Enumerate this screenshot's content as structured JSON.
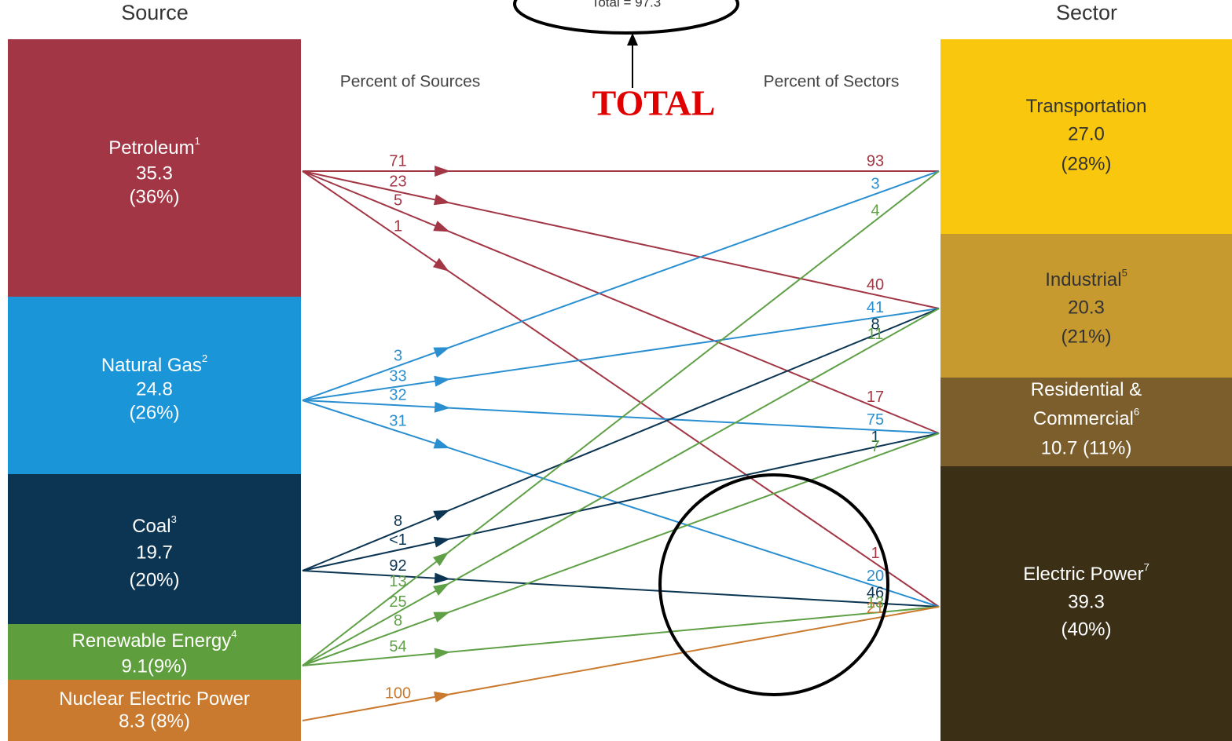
{
  "headers": {
    "source": "Source",
    "sector": "Sector",
    "percent_sources": "Percent of Sources",
    "percent_sectors": "Percent of Sectors",
    "total_box": "Total = 97.3",
    "total_label": "TOTAL"
  },
  "sources": [
    {
      "name": [
        "Petroleum"
      ],
      "sup": "1",
      "lines": [
        "35.3",
        "(36%)"
      ],
      "flows": [
        {
          "source_pct": "71",
          "sector_pct": "93"
        },
        {
          "source_pct": "23",
          "sector_pct": "40"
        },
        {
          "source_pct": "5",
          "sector_pct": "17"
        },
        {
          "source_pct": "1",
          "sector_pct": "1"
        }
      ]
    },
    {
      "name": [
        "Natural Gas"
      ],
      "sup": "2",
      "lines": [
        "24.8",
        "(26%)"
      ],
      "flows": [
        {
          "source_pct": "3",
          "sector_pct": "3"
        },
        {
          "source_pct": "33",
          "sector_pct": "41"
        },
        {
          "source_pct": "32",
          "sector_pct": "75"
        },
        {
          "source_pct": "31",
          "sector_pct": "20"
        }
      ]
    },
    {
      "name": [
        "Coal"
      ],
      "sup": "3",
      "lines": [
        "19.7",
        "(20%)"
      ],
      "flows": [
        {
          "source_pct": "8",
          "sector_pct": "8"
        },
        {
          "source_pct": "<1",
          "sector_pct": "1"
        },
        {
          "source_pct": "92",
          "sector_pct": "46"
        }
      ]
    },
    {
      "name": [
        "Renewable Energy"
      ],
      "sup": "4",
      "lines": [
        "9.1(9%)"
      ],
      "flows": [
        {
          "source_pct": "13",
          "sector_pct": "4"
        },
        {
          "source_pct": "25",
          "sector_pct": "11"
        },
        {
          "source_pct": "8",
          "sector_pct": "7"
        },
        {
          "source_pct": "54",
          "sector_pct": "13"
        }
      ]
    },
    {
      "name": [
        "Nuclear Electric Power"
      ],
      "sup": "",
      "lines": [
        "8.3 (8%)"
      ],
      "flows": [
        {
          "source_pct": "100",
          "sector_pct": "21"
        }
      ]
    }
  ],
  "sectors": [
    {
      "name": [
        "Transportation"
      ],
      "sup": "",
      "lines": [
        "27.0",
        "(28%)"
      ]
    },
    {
      "name": [
        "Industrial"
      ],
      "sup": "5",
      "lines": [
        "20.3",
        "(21%)"
      ]
    },
    {
      "name": [
        "Residential &",
        "Commercial"
      ],
      "sup": "6",
      "lines": [
        "10.7 (11%)"
      ]
    },
    {
      "name": [
        "Electric Power"
      ],
      "sup": "7",
      "lines": [
        "39.3",
        "(40%)"
      ]
    }
  ]
}
